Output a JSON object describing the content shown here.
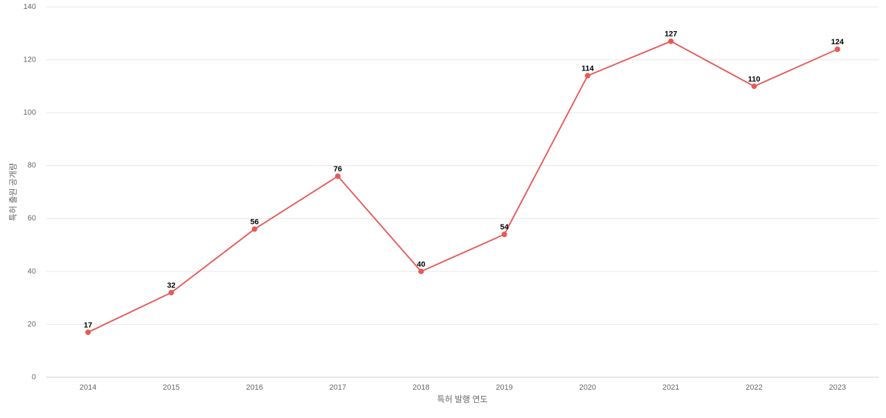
{
  "chart_data": {
    "type": "line",
    "x_label": "특허 발행 연도",
    "y_label": "특허 출원 공개량",
    "categories": [
      "2014",
      "2015",
      "2016",
      "2017",
      "2018",
      "2019",
      "2020",
      "2021",
      "2022",
      "2023"
    ],
    "series": [
      {
        "name": "특허 출원 공개량",
        "color": "#e85a5a",
        "values": [
          17,
          32,
          56,
          76,
          40,
          54,
          114,
          127,
          110,
          124
        ]
      }
    ],
    "ylim": [
      0,
      140
    ],
    "yticks": [
      0,
      20,
      40,
      60,
      80,
      100,
      120,
      140
    ],
    "grid": true
  }
}
